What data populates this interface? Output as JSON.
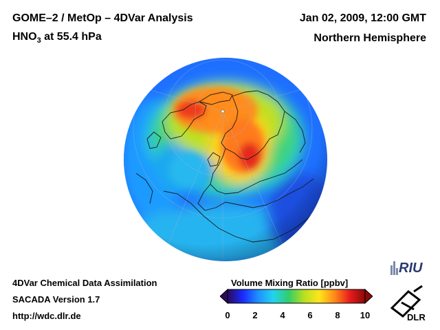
{
  "header": {
    "title": "GOME–2 / MetOp – 4DVar Analysis",
    "species_prefix": "HNO",
    "species_sub": "3",
    "species_suffix": " at 55.4 hPa",
    "date": "Jan 02, 2009, 12:00 GMT",
    "hemisphere": "Northern Hemisphere"
  },
  "footer": {
    "line1": "4DVar Chemical Data Assimilation",
    "line2": "SACADA Version 1.7",
    "line3": "http://wdc.dlr.de"
  },
  "colorbar": {
    "label": "Volume Mixing Ratio [ppbv]",
    "ticks": [
      "0",
      "2",
      "4",
      "6",
      "8",
      "10"
    ],
    "min": 0,
    "max": 10,
    "colors": [
      "#2a0a5a",
      "#1a2aff",
      "#1e90ff",
      "#22d3ee",
      "#32cd6a",
      "#b6e020",
      "#ffe51a",
      "#ff8a1a",
      "#e81c1c",
      "#8a0a0a"
    ]
  },
  "logos": {
    "riu": "RIU",
    "dlr": "DLR"
  }
}
